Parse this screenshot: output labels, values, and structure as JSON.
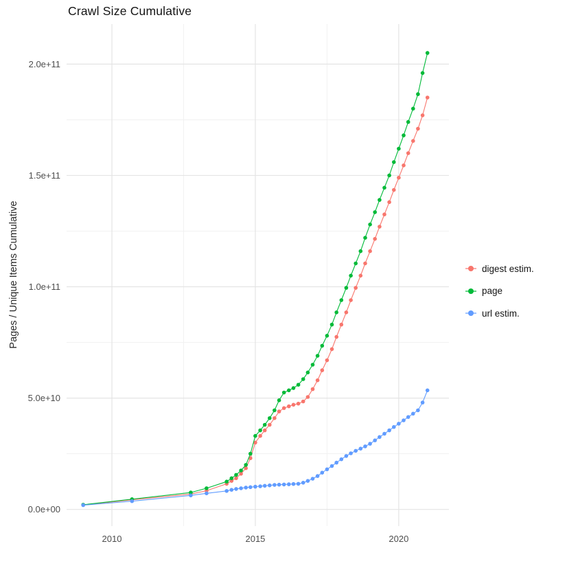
{
  "chart_data": {
    "type": "scatter-line",
    "title": "Crawl Size Cumulative",
    "xlabel": "",
    "ylabel": "Pages / Unique Items Cumulative",
    "grid": true,
    "legend_position": "right",
    "x_range": [
      2008.42,
      2021.75
    ],
    "y_range_billions": [
      -7.5,
      218
    ],
    "y_value_unit": 1000000000,
    "x_ticks": [
      {
        "value": 2010,
        "label": "2010"
      },
      {
        "value": 2015,
        "label": "2015"
      },
      {
        "value": 2020,
        "label": "2020"
      }
    ],
    "x_minor_ticks": [
      2012.5,
      2017.5
    ],
    "y_ticks_billions": [
      {
        "value": 0,
        "label": "0.0e+00"
      },
      {
        "value": 50,
        "label": "5.0e+10"
      },
      {
        "value": 100,
        "label": "1.0e+11"
      },
      {
        "value": 150,
        "label": "1.5e+11"
      },
      {
        "value": 200,
        "label": "2.0e+11"
      }
    ],
    "y_minor_ticks_billions": [
      25,
      75,
      125,
      175
    ],
    "x": [
      2009.0,
      2010.7,
      2012.75,
      2013.3,
      2014.0,
      2014.17,
      2014.33,
      2014.5,
      2014.67,
      2014.83,
      2015.0,
      2015.17,
      2015.33,
      2015.5,
      2015.67,
      2015.83,
      2016.0,
      2016.17,
      2016.33,
      2016.5,
      2016.67,
      2016.83,
      2017.0,
      2017.17,
      2017.33,
      2017.5,
      2017.67,
      2017.83,
      2018.0,
      2018.17,
      2018.33,
      2018.5,
      2018.67,
      2018.83,
      2019.0,
      2019.17,
      2019.33,
      2019.5,
      2019.67,
      2019.83,
      2020.0,
      2020.17,
      2020.33,
      2020.5,
      2020.67,
      2020.83,
      2021.0
    ],
    "series": [
      {
        "name": "digest estim.",
        "color": "#F8766D",
        "values_billions": [
          2.0,
          4.3,
          6.9,
          8.4,
          11.5,
          12.8,
          14,
          16,
          18.5,
          23,
          30,
          33,
          35.5,
          38,
          41,
          44,
          45.5,
          46.3,
          47,
          47.5,
          48.5,
          50.5,
          54,
          58,
          62.5,
          67,
          72,
          77.5,
          83,
          88.5,
          94,
          99.5,
          105,
          110.5,
          116,
          121.5,
          127,
          132.5,
          138,
          143.5,
          149,
          154.5,
          160,
          165.5,
          171,
          177,
          185
        ]
      },
      {
        "name": "page",
        "color": "#00BA38",
        "values_billions": [
          2.1,
          4.6,
          7.6,
          9.5,
          12.5,
          14,
          15.5,
          17.5,
          20,
          25,
          33,
          35.5,
          38,
          41,
          44.5,
          49,
          52.5,
          53.5,
          54.5,
          56,
          58.5,
          61.5,
          65,
          69,
          73.5,
          78,
          83,
          88.5,
          94,
          99.5,
          105,
          110.5,
          116,
          122,
          128,
          133.5,
          139,
          144.5,
          150,
          156,
          162,
          168,
          174,
          180,
          186.5,
          196,
          205
        ]
      },
      {
        "name": "url estim.",
        "color": "#619CFF",
        "values_billions": [
          1.9,
          3.7,
          6.3,
          7.2,
          8.3,
          8.8,
          9.2,
          9.5,
          9.8,
          10.0,
          10.2,
          10.4,
          10.6,
          10.8,
          11.0,
          11.1,
          11.2,
          11.3,
          11.4,
          11.5,
          12.0,
          12.8,
          13.8,
          15,
          16.5,
          18,
          19.5,
          21,
          22.5,
          24,
          25.2,
          26.3,
          27.3,
          28.3,
          29.5,
          31,
          32.5,
          34,
          35.5,
          37,
          38.5,
          40,
          41.5,
          43,
          44.5,
          48,
          53.5
        ]
      }
    ]
  },
  "style": {
    "grid_major_color": "#E4E4E4",
    "grid_minor_color": "#F1F1F1",
    "tick_label_color": "#4d4d4d",
    "background": "#ffffff"
  }
}
